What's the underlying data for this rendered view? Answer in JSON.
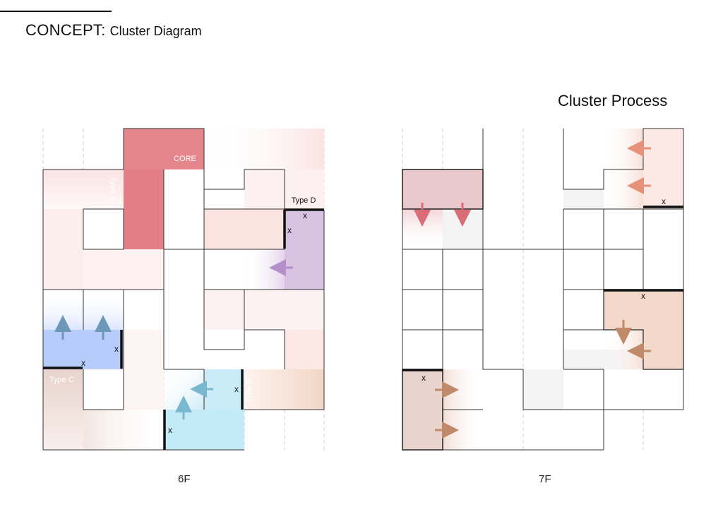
{
  "header": {
    "title": "CONCEPT:",
    "subtitle": "Cluster Diagram"
  },
  "process_title": "Cluster Process",
  "floors": [
    {
      "label": "6F",
      "types": [
        "CORE",
        "Type C",
        "Type D",
        "Type C",
        "Type B"
      ]
    },
    {
      "label": "7F"
    }
  ],
  "marker": "x",
  "colors": {
    "core": "#e5868c",
    "type_c_blue": "#b7ccfb",
    "type_b_cyan": "#c3eaf7",
    "type_d_purple": "#d8c2e2",
    "pink_light": "#fbe3e3",
    "tan": "#e8d4cd",
    "peach": "#f3ddd0",
    "arrow_blue": "#6d98b8",
    "arrow_cyan": "#7ab8cf",
    "arrow_purple": "#b58fc9",
    "arrow_red": "#d96c76",
    "arrow_salmon": "#e7907a",
    "arrow_brown": "#c08a6a"
  }
}
